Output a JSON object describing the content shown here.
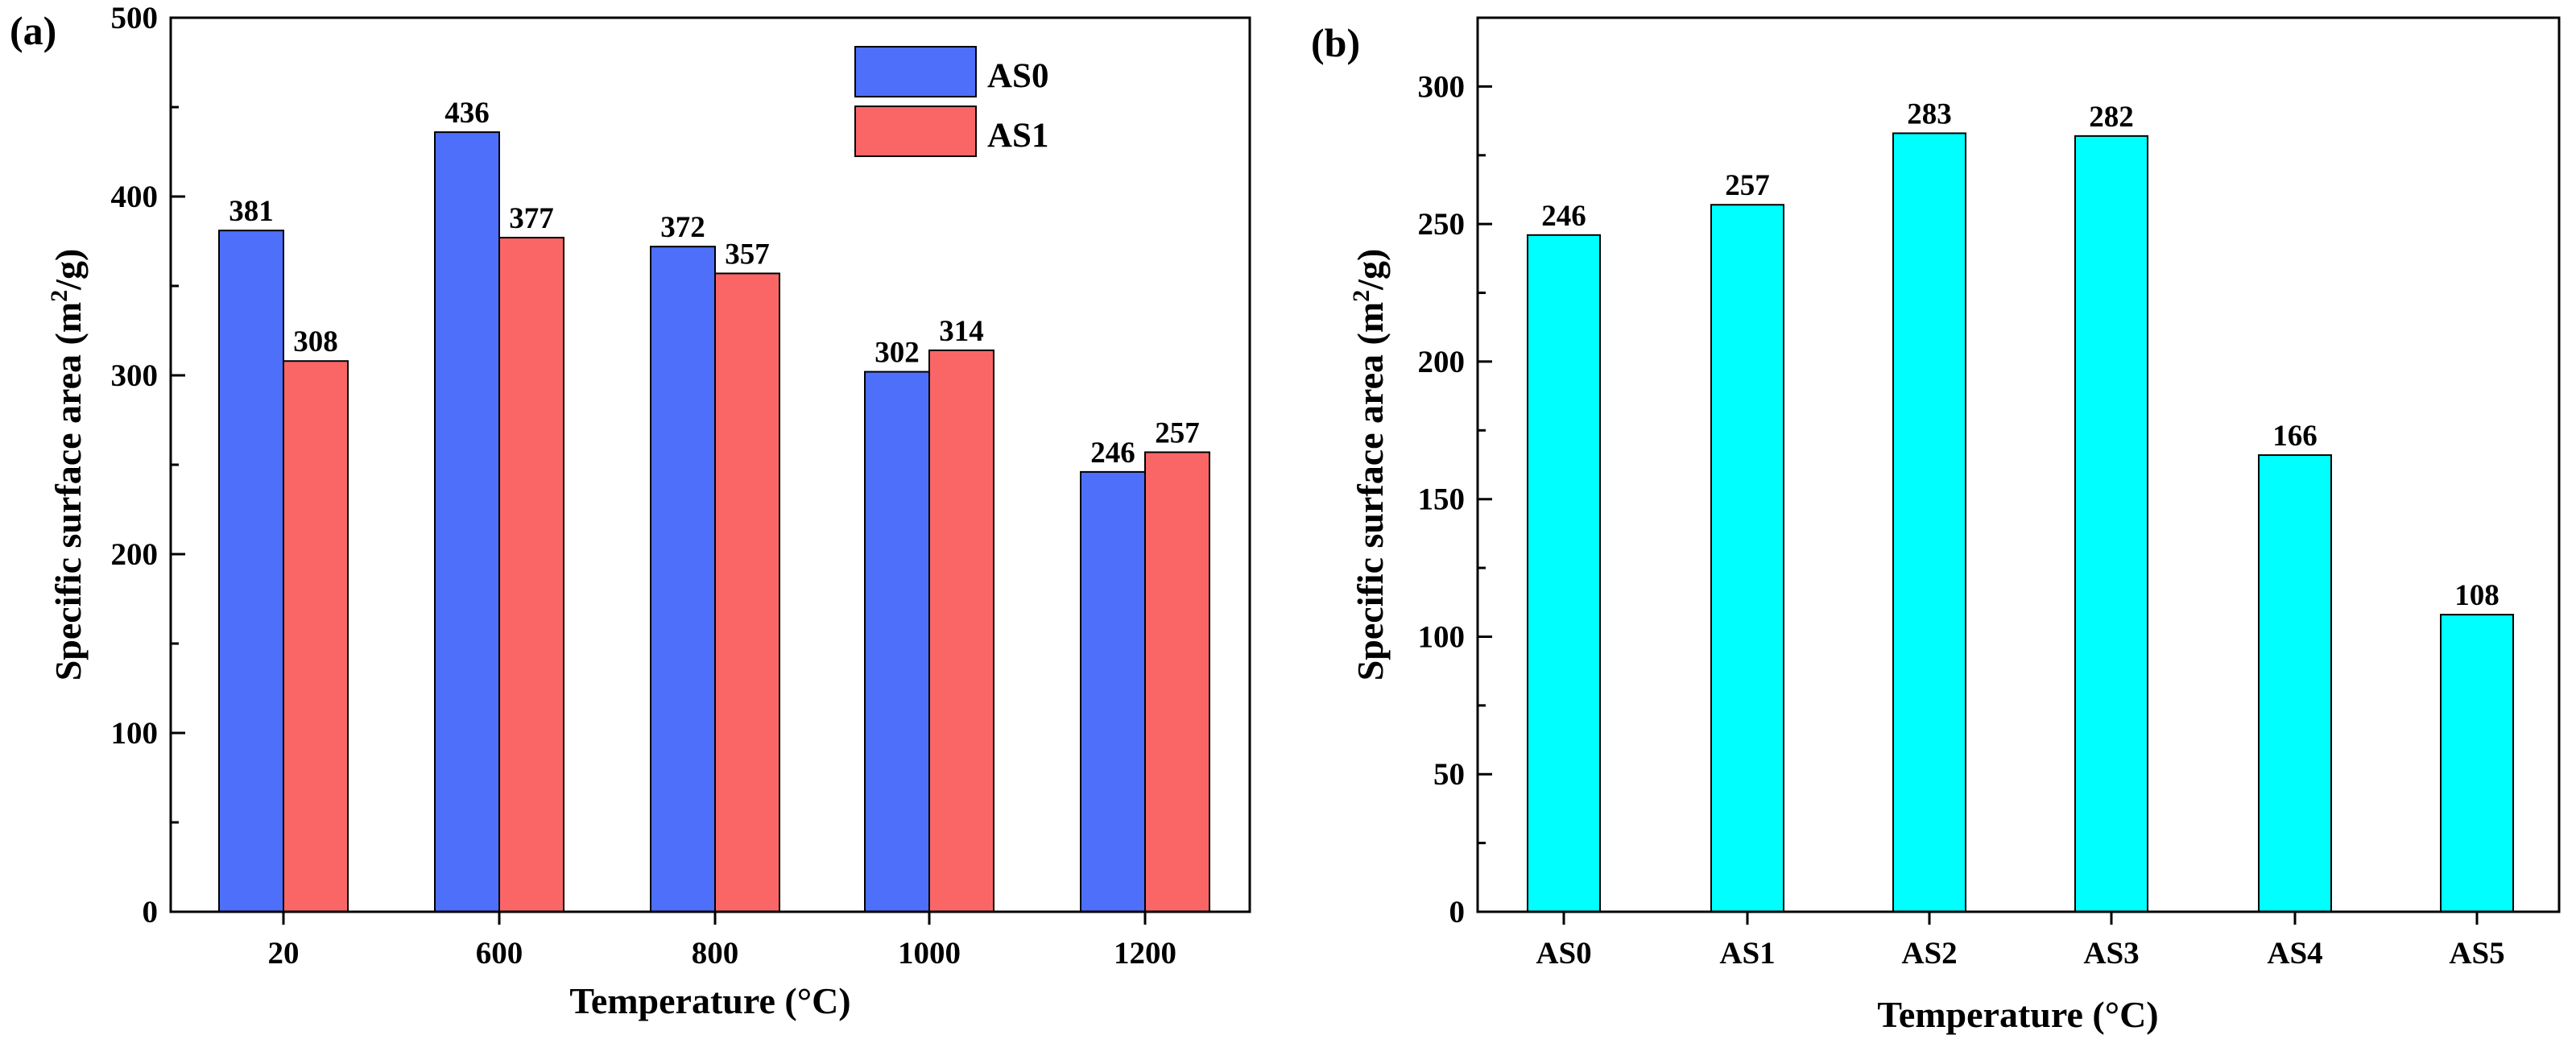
{
  "chart_data": [
    {
      "panel": "(a)",
      "type": "bar",
      "xlabel": "Temperature (°C)",
      "ylabel": "Specific surface area (m²/g)",
      "ylabel_parts": {
        "pre": "Specific surface area (m",
        "sup": "2",
        "post": "/g)"
      },
      "ylim": [
        0,
        500
      ],
      "yticks": [
        0,
        100,
        200,
        300,
        400,
        500
      ],
      "categories": [
        "20",
        "600",
        "800",
        "1000",
        "1200"
      ],
      "series": [
        {
          "name": "AS0",
          "color": "#4d6ffa",
          "values": [
            381,
            436,
            372,
            302,
            246
          ]
        },
        {
          "name": "AS1",
          "color": "#fa6666",
          "values": [
            308,
            377,
            357,
            314,
            257
          ]
        }
      ],
      "legend": "top-right"
    },
    {
      "panel": "(b)",
      "type": "bar",
      "xlabel": "Temperature (°C)",
      "ylabel": "Specific surface area (m²/g)",
      "ylabel_parts": {
        "pre": "Specific surface area (m",
        "sup": "2",
        "post": "/g)"
      },
      "ylim": [
        0,
        325
      ],
      "yticks": [
        0,
        50,
        100,
        150,
        200,
        250,
        300
      ],
      "categories": [
        "AS0",
        "AS1",
        "AS2",
        "AS3",
        "AS4",
        "AS5"
      ],
      "series": [
        {
          "name": "",
          "color": "#00ffff",
          "values": [
            246,
            257,
            283,
            282,
            166,
            108
          ]
        }
      ]
    }
  ]
}
